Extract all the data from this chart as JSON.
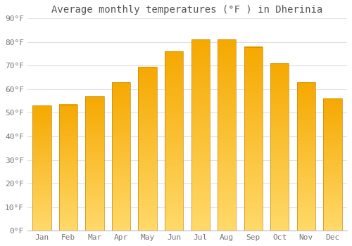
{
  "title": "Average monthly temperatures (°F ) in Dherinia",
  "months": [
    "Jan",
    "Feb",
    "Mar",
    "Apr",
    "May",
    "Jun",
    "Jul",
    "Aug",
    "Sep",
    "Oct",
    "Nov",
    "Dec"
  ],
  "values": [
    53,
    53.5,
    57,
    63,
    69.5,
    76,
    81,
    81,
    78,
    71,
    63,
    56
  ],
  "bar_color_top": "#F5A800",
  "bar_color_bottom": "#FFD96A",
  "bar_edge_color": "#C8890A",
  "bar_edge_width": 0.5,
  "ylim": [
    0,
    90
  ],
  "yticks": [
    0,
    10,
    20,
    30,
    40,
    50,
    60,
    70,
    80,
    90
  ],
  "ytick_labels": [
    "0°F",
    "10°F",
    "20°F",
    "30°F",
    "40°F",
    "50°F",
    "60°F",
    "70°F",
    "80°F",
    "90°F"
  ],
  "background_color": "#FFFFFF",
  "grid_color": "#E0E0E0",
  "title_fontsize": 10,
  "tick_fontsize": 8,
  "bar_width": 0.7
}
